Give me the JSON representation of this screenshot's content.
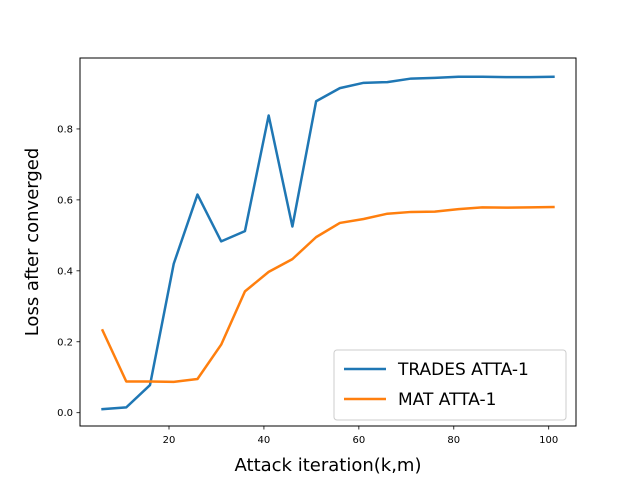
{
  "chart_data": {
    "type": "line",
    "title": "",
    "xlabel": "Attack iteration(k,m)",
    "ylabel": "Loss after converged",
    "xlim": [
      1.25,
      105.75
    ],
    "ylim": [
      -0.0375,
      1.0
    ],
    "xticks": [
      20,
      40,
      60,
      80,
      100
    ],
    "xtick_labels": [
      "20",
      "40",
      "60",
      "80",
      "100"
    ],
    "yticks": [
      0.0,
      0.2,
      0.4,
      0.6,
      0.8
    ],
    "ytick_labels": [
      "0.0",
      "0.2",
      "0.4",
      "0.6",
      "0.8"
    ],
    "grid": false,
    "legend": {
      "position": "bottom-right"
    },
    "x": [
      6,
      11,
      16,
      21,
      26,
      31,
      36,
      41,
      46,
      51,
      56,
      61,
      66,
      71,
      76,
      81,
      86,
      91,
      96,
      101
    ],
    "series": [
      {
        "name": "TRADES ATTA-1",
        "color": "#1f77b4",
        "values": [
          0.01,
          0.015,
          0.078,
          0.42,
          0.615,
          0.483,
          0.512,
          0.838,
          0.525,
          0.878,
          0.915,
          0.93,
          0.932,
          0.942,
          0.944,
          0.947,
          0.947,
          0.946,
          0.946,
          0.947
        ]
      },
      {
        "name": "MAT ATTA-1",
        "color": "#ff7f0e",
        "values": [
          0.232,
          0.088,
          0.088,
          0.087,
          0.095,
          0.192,
          0.342,
          0.397,
          0.433,
          0.495,
          0.535,
          0.546,
          0.561,
          0.566,
          0.567,
          0.574,
          0.579,
          0.578,
          0.579,
          0.58
        ]
      }
    ]
  }
}
